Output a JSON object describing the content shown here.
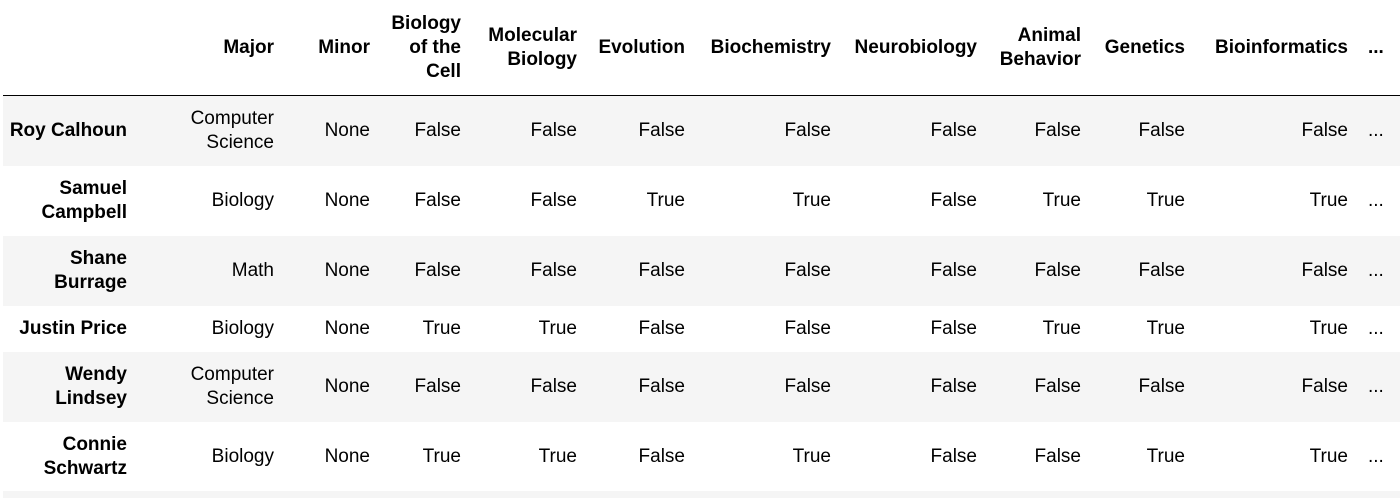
{
  "table": {
    "columns": [
      "",
      "Major",
      "Minor",
      "Biology of the Cell",
      "Molecular Biology",
      "Evolution",
      "Biochemistry",
      "Neurobiology",
      "Animal Behavior",
      "Genetics",
      "Bioinformatics",
      "..."
    ],
    "rows": [
      {
        "name": "Roy Calhoun",
        "cells": [
          "Computer Science",
          "None",
          "False",
          "False",
          "False",
          "False",
          "False",
          "False",
          "False",
          "False",
          "..."
        ]
      },
      {
        "name": "Samuel Campbell",
        "cells": [
          "Biology",
          "None",
          "False",
          "False",
          "True",
          "True",
          "False",
          "True",
          "True",
          "True",
          "..."
        ]
      },
      {
        "name": "Shane Burrage",
        "cells": [
          "Math",
          "None",
          "False",
          "False",
          "False",
          "False",
          "False",
          "False",
          "False",
          "False",
          "..."
        ]
      },
      {
        "name": "Justin Price",
        "cells": [
          "Biology",
          "None",
          "True",
          "True",
          "False",
          "False",
          "False",
          "True",
          "True",
          "True",
          "..."
        ]
      },
      {
        "name": "Wendy Lindsey",
        "cells": [
          "Computer Science",
          "None",
          "False",
          "False",
          "False",
          "False",
          "False",
          "False",
          "False",
          "False",
          "..."
        ]
      },
      {
        "name": "Connie Schwartz",
        "cells": [
          "Biology",
          "None",
          "True",
          "True",
          "False",
          "True",
          "False",
          "False",
          "True",
          "True",
          "..."
        ]
      }
    ]
  }
}
